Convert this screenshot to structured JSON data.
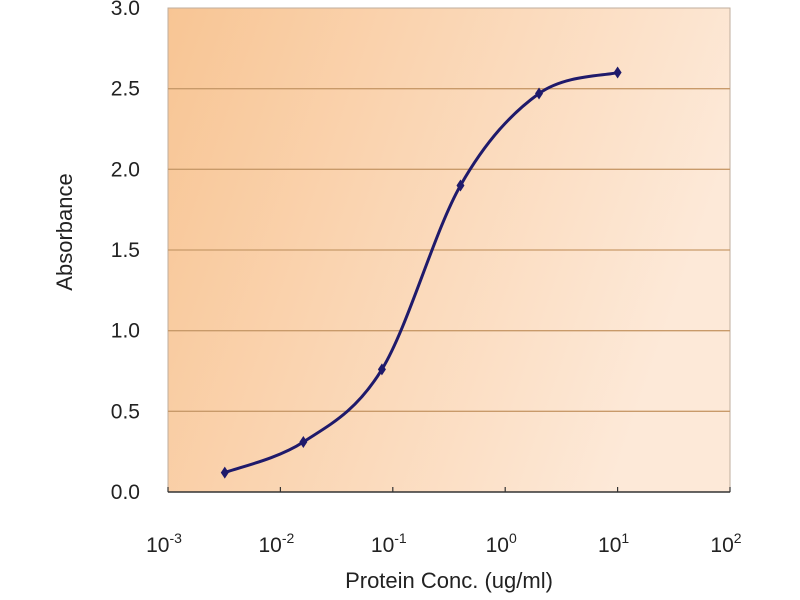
{
  "chart_data": {
    "type": "line",
    "title": "",
    "xlabel": "Protein Conc. (ug/ml)",
    "ylabel": "Absorbance",
    "xscale": "log",
    "xlim": [
      0.001,
      100
    ],
    "ylim": [
      0,
      3.0
    ],
    "grid": "horizontal",
    "x_ticks": [
      {
        "base": "10",
        "exp": "-3",
        "value": 0.001
      },
      {
        "base": "10",
        "exp": "-2",
        "value": 0.01
      },
      {
        "base": "10",
        "exp": "-1",
        "value": 0.1
      },
      {
        "base": "10",
        "exp": "0",
        "value": 1
      },
      {
        "base": "10",
        "exp": "1",
        "value": 10
      },
      {
        "base": "10",
        "exp": "2",
        "value": 100
      }
    ],
    "y_ticks": [
      "0.0",
      "0.5",
      "1.0",
      "1.5",
      "2.0",
      "2.5",
      "3.0"
    ],
    "series": [
      {
        "name": "Absorbance",
        "color": "#1f1a6b",
        "x": [
          0.0032,
          0.016,
          0.08,
          0.4,
          2,
          10
        ],
        "y": [
          0.12,
          0.31,
          0.76,
          1.9,
          2.47,
          2.6
        ]
      }
    ],
    "colors": {
      "bg_left": "#f8c594",
      "bg_right": "#fde8d6",
      "grid": "#c89a6a"
    }
  }
}
